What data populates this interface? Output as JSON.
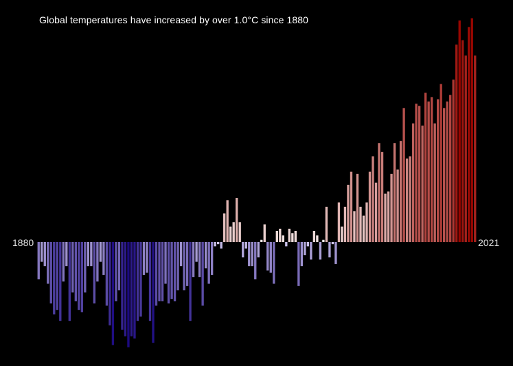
{
  "chart_data": {
    "type": "bar",
    "title": "Global temperatures have increased by over 1.0°C since 1880",
    "start_year_label": "1880",
    "end_year_label": "2021",
    "xlabel": "",
    "ylabel": "",
    "units": "°C anomaly",
    "ylim": [
      -0.5,
      1.05
    ],
    "colors": {
      "cold": "#1c0a80",
      "mid": "#f7efee",
      "warm": "#990600",
      "background": "#000000",
      "text": "#ffffff"
    },
    "x": [
      1880,
      1881,
      1882,
      1883,
      1884,
      1885,
      1886,
      1887,
      1888,
      1889,
      1890,
      1891,
      1892,
      1893,
      1894,
      1895,
      1896,
      1897,
      1898,
      1899,
      1900,
      1901,
      1902,
      1903,
      1904,
      1905,
      1906,
      1907,
      1908,
      1909,
      1910,
      1911,
      1912,
      1913,
      1914,
      1915,
      1916,
      1917,
      1918,
      1919,
      1920,
      1921,
      1922,
      1923,
      1924,
      1925,
      1926,
      1927,
      1928,
      1929,
      1930,
      1931,
      1932,
      1933,
      1934,
      1935,
      1936,
      1937,
      1938,
      1939,
      1940,
      1941,
      1942,
      1943,
      1944,
      1945,
      1946,
      1947,
      1948,
      1949,
      1950,
      1951,
      1952,
      1953,
      1954,
      1955,
      1956,
      1957,
      1958,
      1959,
      1960,
      1961,
      1962,
      1963,
      1964,
      1965,
      1966,
      1967,
      1968,
      1969,
      1970,
      1971,
      1972,
      1973,
      1974,
      1975,
      1976,
      1977,
      1978,
      1979,
      1980,
      1981,
      1982,
      1983,
      1984,
      1985,
      1986,
      1987,
      1988,
      1989,
      1990,
      1991,
      1992,
      1993,
      1994,
      1995,
      1996,
      1997,
      1998,
      1999,
      2000,
      2001,
      2002,
      2003,
      2004,
      2005,
      2006,
      2007,
      2008,
      2009,
      2010,
      2011,
      2012,
      2013,
      2014,
      2015,
      2016,
      2017,
      2018,
      2019,
      2020,
      2021
    ],
    "values": [
      -0.17,
      -0.09,
      -0.11,
      -0.19,
      -0.28,
      -0.33,
      -0.31,
      -0.36,
      -0.18,
      -0.11,
      -0.36,
      -0.23,
      -0.27,
      -0.31,
      -0.32,
      -0.23,
      -0.11,
      -0.11,
      -0.28,
      -0.18,
      -0.09,
      -0.15,
      -0.29,
      -0.38,
      -0.47,
      -0.27,
      -0.22,
      -0.4,
      -0.43,
      -0.48,
      -0.43,
      -0.44,
      -0.36,
      -0.34,
      -0.15,
      -0.14,
      -0.36,
      -0.46,
      -0.29,
      -0.27,
      -0.27,
      -0.19,
      -0.28,
      -0.26,
      -0.27,
      -0.22,
      -0.11,
      -0.22,
      -0.2,
      -0.36,
      -0.16,
      -0.09,
      -0.16,
      -0.29,
      -0.12,
      -0.19,
      -0.15,
      -0.02,
      -0.01,
      -0.03,
      0.13,
      0.19,
      0.07,
      0.09,
      0.2,
      0.09,
      -0.07,
      -0.03,
      -0.11,
      -0.11,
      -0.17,
      -0.07,
      0.01,
      0.08,
      -0.13,
      -0.14,
      -0.19,
      0.05,
      0.06,
      0.03,
      -0.02,
      0.06,
      0.04,
      0.05,
      -0.2,
      -0.11,
      -0.06,
      -0.02,
      -0.08,
      0.05,
      0.03,
      -0.08,
      0.01,
      0.16,
      -0.07,
      -0.01,
      -0.1,
      0.18,
      0.07,
      0.16,
      0.26,
      0.32,
      0.14,
      0.31,
      0.16,
      0.12,
      0.18,
      0.32,
      0.39,
      0.27,
      0.45,
      0.41,
      0.22,
      0.23,
      0.31,
      0.45,
      0.33,
      0.46,
      0.61,
      0.38,
      0.39,
      0.54,
      0.63,
      0.62,
      0.53,
      0.68,
      0.64,
      0.66,
      0.54,
      0.65,
      0.72,
      0.61,
      0.64,
      0.67,
      0.74,
      0.9,
      1.01,
      0.92,
      0.85,
      0.98,
      1.02,
      0.85
    ]
  }
}
